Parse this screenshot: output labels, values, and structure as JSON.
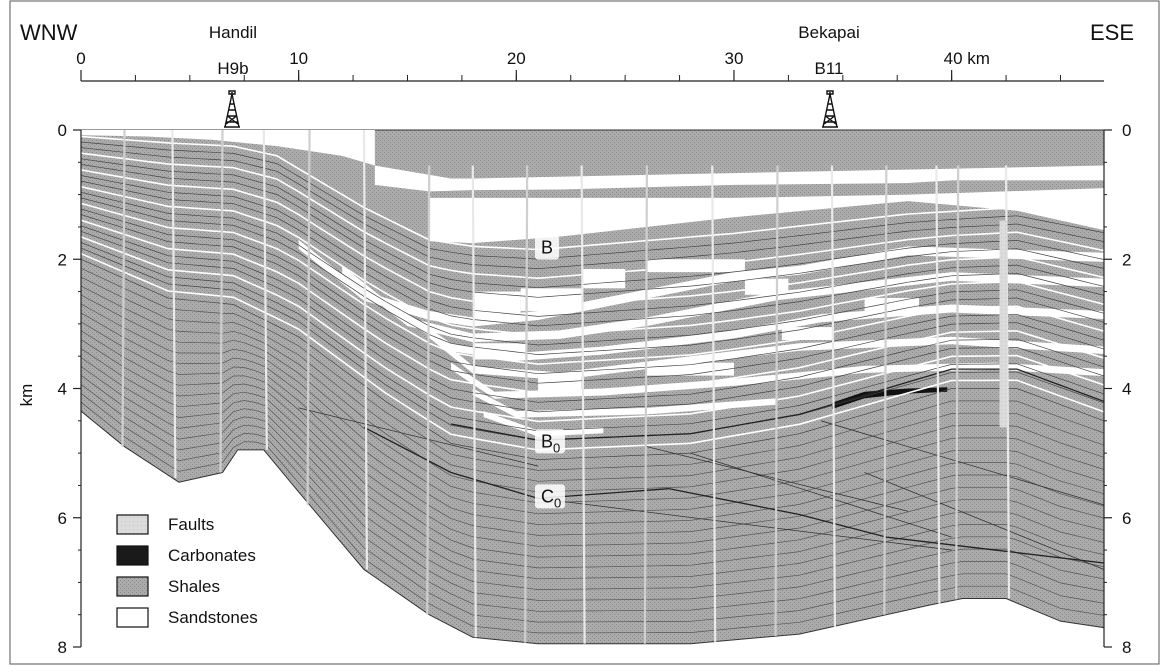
{
  "header": {
    "left_direction": "WNW",
    "right_direction": "ESE",
    "wells": [
      {
        "field": "Handil",
        "name": "H9b",
        "km": 7
      },
      {
        "field": "Bekapai",
        "name": "B11",
        "km": 34.5
      }
    ]
  },
  "distance_axis": {
    "unit": "km",
    "range": [
      0,
      47
    ],
    "major_ticks": [
      {
        "value": 0,
        "label": "0"
      },
      {
        "value": 10,
        "label": "10"
      },
      {
        "value": 20,
        "label": "20"
      },
      {
        "value": 30,
        "label": "30"
      },
      {
        "value": 40,
        "label": "40 km"
      }
    ]
  },
  "depth_axis": {
    "label": "km",
    "range": [
      0,
      8
    ],
    "ticks": [
      {
        "value": 0,
        "label": "0"
      },
      {
        "value": 2,
        "label": "2"
      },
      {
        "value": 4,
        "label": "4"
      },
      {
        "value": 6,
        "label": "6"
      },
      {
        "value": 8,
        "label": "8"
      }
    ]
  },
  "horizons": [
    {
      "label": "B",
      "sub": "",
      "km": 21.5,
      "depth": 1.85
    },
    {
      "label": "B",
      "sub": "0",
      "km": 21.5,
      "depth": 4.85
    },
    {
      "label": "C",
      "sub": "0",
      "km": 21.5,
      "depth": 5.7
    }
  ],
  "legend": [
    {
      "key": "faults",
      "label": "Faults",
      "color": "#d4d4d4"
    },
    {
      "key": "carbonates",
      "label": "Carbonates",
      "color": "#1a1a1a"
    },
    {
      "key": "shales",
      "label": "Shales",
      "color": "#a6a6a6"
    },
    {
      "key": "sandstones",
      "label": "Sandstones",
      "color": "#ffffff"
    }
  ]
}
